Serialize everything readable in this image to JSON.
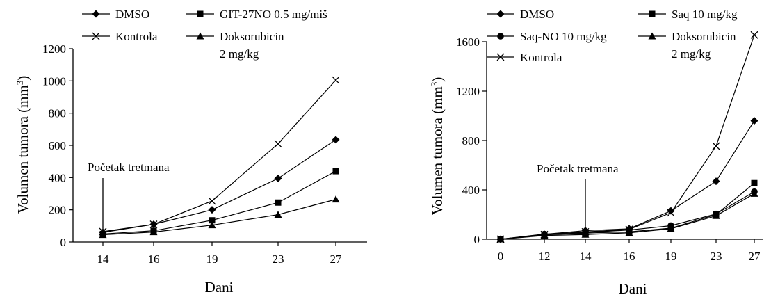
{
  "chart_data": [
    {
      "type": "line",
      "xlabel": "Dani",
      "ylabel": "Volumen tumora (mm³)",
      "ylabel_parts": {
        "main": "Volumen tumora (mm",
        "sup": "3",
        "close": ")"
      },
      "categories": [
        "14",
        "16",
        "19",
        "23",
        "27"
      ],
      "ylim": [
        0,
        1200
      ],
      "yticks": [
        0,
        200,
        400,
        600,
        800,
        1000,
        1200
      ],
      "legend_position": "top",
      "annotation": {
        "text": "Početak tretmana",
        "category": "14"
      },
      "series": [
        {
          "name": "DMSO",
          "marker": "diamond",
          "values": [
            60,
            110,
            200,
            395,
            635
          ]
        },
        {
          "name": "GIT-27NO 0.5 mg/miš",
          "marker": "square",
          "values": [
            50,
            70,
            135,
            245,
            440
          ]
        },
        {
          "name": "Kontrola",
          "marker": "x",
          "values": [
            65,
            110,
            255,
            610,
            1005
          ]
        },
        {
          "name": "Doksorubicin 2 mg/kg",
          "name_lines": [
            "Doksorubicin",
            "2 mg/kg"
          ],
          "marker": "triangle",
          "values": [
            45,
            62,
            105,
            170,
            265
          ]
        }
      ],
      "legend_layout": [
        [
          "DMSO",
          "GIT-27NO 0.5 mg/miš"
        ],
        [
          "Kontrola",
          "Doksorubicin 2 mg/kg"
        ]
      ]
    },
    {
      "type": "line",
      "xlabel": "Dani",
      "ylabel": "Volumen tumora (mm³)",
      "ylabel_parts": {
        "main": "Volumen tumora (mm",
        "sup": "3",
        "close": ")"
      },
      "categories": [
        "0",
        "12",
        "14",
        "16",
        "19",
        "23",
        "27"
      ],
      "ylim": [
        0,
        1600
      ],
      "yticks": [
        0,
        400,
        800,
        1200,
        1600
      ],
      "legend_position": "top",
      "annotation": {
        "text": "Početak tretmana",
        "category": "14"
      },
      "series": [
        {
          "name": "DMSO",
          "marker": "diamond",
          "values": [
            0,
            40,
            70,
            85,
            230,
            470,
            960
          ]
        },
        {
          "name": "Saq 10 mg/kg",
          "marker": "square",
          "values": [
            0,
            35,
            50,
            60,
            90,
            200,
            455
          ]
        },
        {
          "name": "Saq-NO 10 mg/kg",
          "marker": "circle",
          "values": [
            0,
            42,
            55,
            75,
            110,
            205,
            385
          ]
        },
        {
          "name": "Doksorubicin 2 mg/kg",
          "name_lines": [
            "Doksorubicin",
            "2 mg/kg"
          ],
          "marker": "triangle",
          "values": [
            0,
            30,
            38,
            52,
            85,
            190,
            370
          ]
        },
        {
          "name": "Kontrola",
          "marker": "x",
          "values": [
            0,
            38,
            60,
            80,
            215,
            755,
            1655
          ]
        }
      ],
      "legend_layout": [
        [
          "DMSO",
          "Saq 10 mg/kg"
        ],
        [
          "Saq-NO 10 mg/kg",
          "Doksorubicin 2 mg/kg"
        ],
        [
          "Kontrola"
        ]
      ]
    }
  ]
}
